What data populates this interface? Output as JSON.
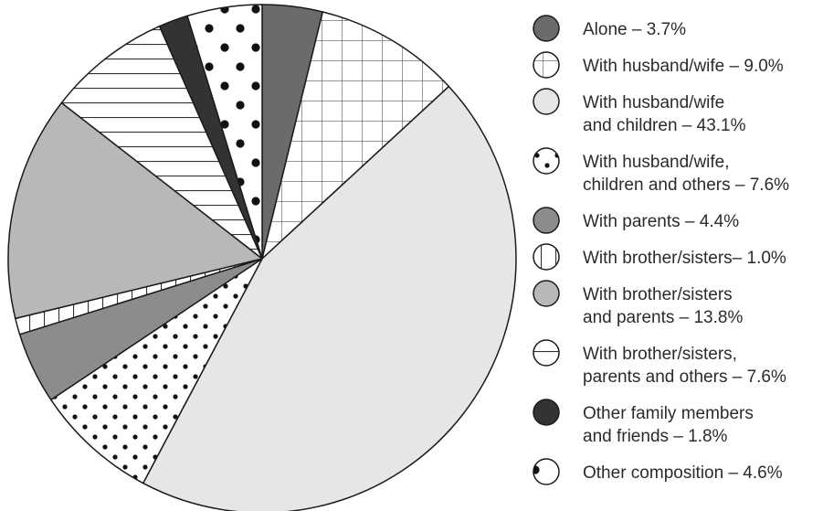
{
  "chart_data": {
    "type": "pie",
    "slices": [
      {
        "label": "Alone – 3.7%",
        "lines": [
          "Alone – 3.7%"
        ],
        "value": 3.7,
        "fill": "#6b6b6b",
        "pattern": "solid"
      },
      {
        "label": "With husband/wife – 9.0%",
        "lines": [
          "With husband/wife – 9.0%"
        ],
        "value": 9.0,
        "fill": "#ffffff",
        "pattern": "grid"
      },
      {
        "label": "With husband/wife and children – 43.1%",
        "lines": [
          "With husband/wife",
          "and children – 43.1%"
        ],
        "value": 43.1,
        "fill": "#e6e6e6",
        "pattern": "solid"
      },
      {
        "label": "With husband/wife, children and others – 7.6%",
        "lines": [
          "With husband/wife,",
          "children and others – 7.6%"
        ],
        "value": 7.6,
        "fill": "#ffffff",
        "pattern": "dense-dots"
      },
      {
        "label": "With parents – 4.4%",
        "lines": [
          "With parents – 4.4%"
        ],
        "value": 4.4,
        "fill": "#8c8c8c",
        "pattern": "solid"
      },
      {
        "label": "With brother/sisters– 1.0%",
        "lines": [
          "With brother/sisters– 1.0%"
        ],
        "value": 1.0,
        "fill": "#ffffff",
        "pattern": "vertical-lines"
      },
      {
        "label": "With brother/sisters and parents – 13.8%",
        "lines": [
          "With brother/sisters",
          "and parents – 13.8%"
        ],
        "value": 13.8,
        "fill": "#b8b8b8",
        "pattern": "solid"
      },
      {
        "label": "With brother/sisters, parents and others – 7.6%",
        "lines": [
          "With brother/sisters,",
          "parents and others – 7.6%"
        ],
        "value": 7.6,
        "fill": "#ffffff",
        "pattern": "horizontal-lines"
      },
      {
        "label": "Other family members and friends – 1.8%",
        "lines": [
          "Other family members",
          "and friends – 1.8%"
        ],
        "value": 1.8,
        "fill": "#333333",
        "pattern": "solid"
      },
      {
        "label": "Other composition – 4.6%",
        "lines": [
          "Other composition – 4.6%"
        ],
        "value": 4.6,
        "fill": "#ffffff",
        "pattern": "sparse-dots"
      }
    ],
    "start": "12 o'clock",
    "direction": "clockwise",
    "legend_position": "right",
    "colors": {
      "outline": "#1a1a1a",
      "text": "#2b2b2b"
    }
  }
}
